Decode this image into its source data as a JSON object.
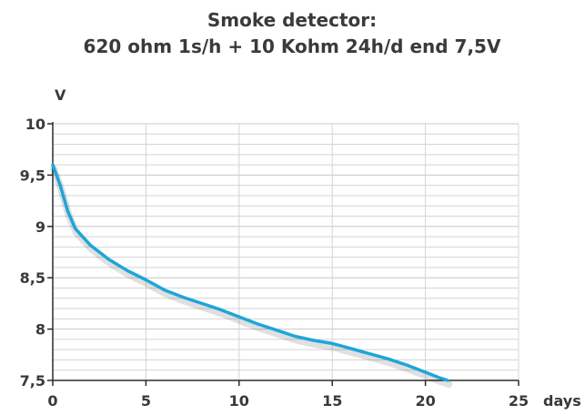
{
  "chart_data": {
    "type": "line",
    "title": "Smoke detector:",
    "subtitle": "620 ohm 1s/h + 10 Kohm 24h/d end 7,5V",
    "xlabel": "days",
    "ylabel": "V",
    "xlim": [
      0,
      25
    ],
    "ylim": [
      7.5,
      10
    ],
    "x_ticks": [
      0,
      5,
      10,
      15,
      20,
      25
    ],
    "x_tick_labels": [
      "0",
      "5",
      "10",
      "15",
      "20",
      "25"
    ],
    "y_ticks": [
      7.5,
      8,
      8.5,
      9,
      9.5,
      10
    ],
    "y_tick_labels": [
      "7,5",
      "8",
      "8,5",
      "9",
      "9,5",
      "10"
    ],
    "y_minor_step": 0.1,
    "grid": true,
    "series": [
      {
        "color": "#1da6d8",
        "points": [
          [
            0,
            9.6
          ],
          [
            0.4,
            9.4
          ],
          [
            0.8,
            9.15
          ],
          [
            1.2,
            8.98
          ],
          [
            2,
            8.82
          ],
          [
            3,
            8.68
          ],
          [
            4,
            8.57
          ],
          [
            5,
            8.48
          ],
          [
            6,
            8.38
          ],
          [
            7,
            8.31
          ],
          [
            8,
            8.25
          ],
          [
            9,
            8.19
          ],
          [
            10,
            8.12
          ],
          [
            11,
            8.05
          ],
          [
            12,
            7.99
          ],
          [
            13,
            7.93
          ],
          [
            14,
            7.89
          ],
          [
            15,
            7.86
          ],
          [
            16,
            7.81
          ],
          [
            17,
            7.76
          ],
          [
            18,
            7.71
          ],
          [
            19,
            7.65
          ],
          [
            20,
            7.58
          ],
          [
            20.7,
            7.53
          ],
          [
            21.2,
            7.5
          ]
        ]
      }
    ]
  }
}
